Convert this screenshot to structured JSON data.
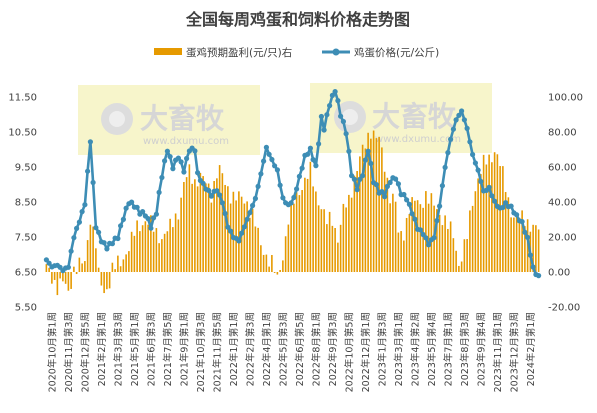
{
  "chart_data": {
    "type": "bar+line",
    "title": "全国每周鸡蛋和饲料价格走势图",
    "series": [
      {
        "name": "蛋鸡预期盈利(元/只)右",
        "kind": "bar",
        "axis": "right",
        "color": "#E69A00",
        "anchors": [
          [
            0,
            2
          ],
          [
            4,
            -8
          ],
          [
            6,
            -6
          ],
          [
            8,
            -12
          ],
          [
            10,
            2
          ],
          [
            14,
            5
          ],
          [
            16,
            32
          ],
          [
            18,
            16
          ],
          [
            19,
            -3
          ],
          [
            21,
            -12
          ],
          [
            23,
            -5
          ],
          [
            24,
            2
          ],
          [
            27,
            5
          ],
          [
            30,
            15
          ],
          [
            33,
            25
          ],
          [
            36,
            30
          ],
          [
            38,
            27
          ],
          [
            40,
            22
          ],
          [
            42,
            20
          ],
          [
            45,
            25
          ],
          [
            48,
            35
          ],
          [
            50,
            50
          ],
          [
            52,
            57
          ],
          [
            54,
            52
          ],
          [
            56,
            55
          ],
          [
            58,
            50
          ],
          [
            60,
            45
          ],
          [
            62,
            57
          ],
          [
            63,
            58
          ],
          [
            65,
            50
          ],
          [
            67,
            45
          ],
          [
            70,
            42
          ],
          [
            73,
            40
          ],
          [
            75,
            33
          ],
          [
            78,
            15
          ],
          [
            80,
            10
          ],
          [
            82,
            5
          ],
          [
            84,
            -5
          ],
          [
            86,
            10
          ],
          [
            88,
            30
          ],
          [
            90,
            40
          ],
          [
            93,
            50
          ],
          [
            96,
            57
          ],
          [
            98,
            45
          ],
          [
            100,
            38
          ],
          [
            102,
            28
          ],
          [
            104,
            30
          ],
          [
            106,
            20
          ],
          [
            108,
            35
          ],
          [
            110,
            40
          ],
          [
            112,
            55
          ],
          [
            114,
            65
          ],
          [
            116,
            72
          ],
          [
            118,
            82
          ],
          [
            119,
            80
          ],
          [
            121,
            75
          ],
          [
            123,
            60
          ],
          [
            125,
            45
          ],
          [
            127,
            40
          ],
          [
            128,
            20
          ],
          [
            130,
            22
          ],
          [
            132,
            38
          ],
          [
            134,
            40
          ],
          [
            136,
            38
          ],
          [
            138,
            45
          ],
          [
            140,
            40
          ],
          [
            142,
            35
          ],
          [
            145,
            30
          ],
          [
            148,
            20
          ],
          [
            150,
            5
          ],
          [
            153,
            20
          ],
          [
            155,
            40
          ],
          [
            157,
            55
          ],
          [
            159,
            62
          ],
          [
            161,
            63
          ],
          [
            163,
            70
          ],
          [
            164,
            68
          ],
          [
            166,
            55
          ],
          [
            168,
            40
          ],
          [
            170,
            32
          ],
          [
            173,
            30
          ],
          [
            176,
            28
          ],
          [
            178,
            25
          ],
          [
            180,
            22
          ],
          [
            182,
            15
          ],
          [
            184,
            10
          ],
          [
            186,
            -5
          ]
        ]
      },
      {
        "name": "鸡蛋价格(元/公斤)",
        "kind": "line",
        "axis": "left",
        "color": "#3D8DB5",
        "anchors": [
          [
            0,
            6.85
          ],
          [
            2,
            6.65
          ],
          [
            4,
            6.7
          ],
          [
            6,
            6.55
          ],
          [
            8,
            6.65
          ],
          [
            10,
            7.5
          ],
          [
            12,
            7.95
          ],
          [
            14,
            8.45
          ],
          [
            16,
            10.25
          ],
          [
            18,
            7.8
          ],
          [
            20,
            7.4
          ],
          [
            22,
            7.2
          ],
          [
            24,
            7.35
          ],
          [
            26,
            7.5
          ],
          [
            28,
            8.05
          ],
          [
            30,
            8.5
          ],
          [
            32,
            8.4
          ],
          [
            34,
            8.2
          ],
          [
            36,
            8.15
          ],
          [
            38,
            7.8
          ],
          [
            40,
            8.2
          ],
          [
            42,
            9.25
          ],
          [
            44,
            10.0
          ],
          [
            46,
            9.5
          ],
          [
            48,
            9.8
          ],
          [
            50,
            9.4
          ],
          [
            52,
            10.0
          ],
          [
            54,
            10.0
          ],
          [
            55,
            9.3
          ],
          [
            57,
            9.0
          ],
          [
            60,
            8.7
          ],
          [
            62,
            8.85
          ],
          [
            64,
            8.5
          ],
          [
            66,
            7.8
          ],
          [
            68,
            7.5
          ],
          [
            70,
            7.4
          ],
          [
            72,
            7.8
          ],
          [
            74,
            8.2
          ],
          [
            76,
            8.6
          ],
          [
            78,
            9.3
          ],
          [
            80,
            10.05
          ],
          [
            82,
            9.7
          ],
          [
            84,
            9.4
          ],
          [
            86,
            8.6
          ],
          [
            88,
            8.4
          ],
          [
            90,
            8.6
          ],
          [
            92,
            9.2
          ],
          [
            94,
            9.8
          ],
          [
            96,
            10.0
          ],
          [
            98,
            9.5
          ],
          [
            100,
            10.9
          ],
          [
            101,
            10.6
          ],
          [
            103,
            11.3
          ],
          [
            105,
            11.7
          ],
          [
            107,
            11.0
          ],
          [
            109,
            10.5
          ],
          [
            111,
            9.3
          ],
          [
            113,
            8.9
          ],
          [
            115,
            9.3
          ],
          [
            117,
            10.0
          ],
          [
            119,
            9.1
          ],
          [
            121,
            8.8
          ],
          [
            123,
            8.7
          ],
          [
            125,
            9.1
          ],
          [
            127,
            9.2
          ],
          [
            129,
            8.75
          ],
          [
            131,
            8.6
          ],
          [
            133,
            8.2
          ],
          [
            135,
            7.75
          ],
          [
            137,
            7.6
          ],
          [
            139,
            7.3
          ],
          [
            141,
            7.5
          ],
          [
            143,
            8.4
          ],
          [
            145,
            9.5
          ],
          [
            147,
            10.3
          ],
          [
            149,
            10.85
          ],
          [
            151,
            11.1
          ],
          [
            153,
            10.6
          ],
          [
            155,
            9.85
          ],
          [
            157,
            9.4
          ],
          [
            159,
            8.8
          ],
          [
            161,
            8.9
          ],
          [
            163,
            8.5
          ],
          [
            165,
            8.3
          ],
          [
            167,
            8.45
          ],
          [
            169,
            8.35
          ],
          [
            171,
            8.1
          ],
          [
            173,
            7.9
          ],
          [
            175,
            7.45
          ],
          [
            177,
            6.6
          ],
          [
            179,
            6.35
          ]
        ]
      }
    ],
    "y_left": {
      "min": 5.5,
      "max": 11.5,
      "ticks": [
        "5.50",
        "6.50",
        "7.50",
        "8.50",
        "9.50",
        "10.50",
        "11.50"
      ]
    },
    "y_right": {
      "min": -20,
      "max": 100,
      "ticks": [
        "-20.00",
        "0.00",
        "20.00",
        "40.00",
        "60.00",
        "80.00",
        "100.00"
      ]
    },
    "x_ticks": [
      "2020年10月第1周",
      "2020年11月第3周",
      "2020年12月第5周",
      "2021年2月第1周",
      "2021年3月第3周",
      "2021年5月第1周",
      "2021年6月第3周",
      "2021年7月第5周",
      "2021年9月第1周",
      "2021年10月第3周",
      "2021年11月第5周",
      "2022年1月第1周",
      "2022年2月第3周",
      "2022年4月第1周",
      "2022年5月第3周",
      "2022年6月第5周",
      "2022年8月第1周",
      "2022年9月第3周",
      "2022年10月第5周",
      "2022年12月第1周",
      "2023年1月第3周",
      "2023年3月第1周",
      "2023年4月第2周",
      "2023年5月第4周",
      "2023年7月第1周",
      "2023年8月第3周",
      "2023年9月第4周",
      "2023年11月第1周",
      "2023年12月第3周",
      "2024年2月第1周"
    ],
    "legend_position": "top",
    "grid": false
  },
  "watermark": {
    "brand": "大畜牧",
    "url": "www.dxumu.com"
  }
}
